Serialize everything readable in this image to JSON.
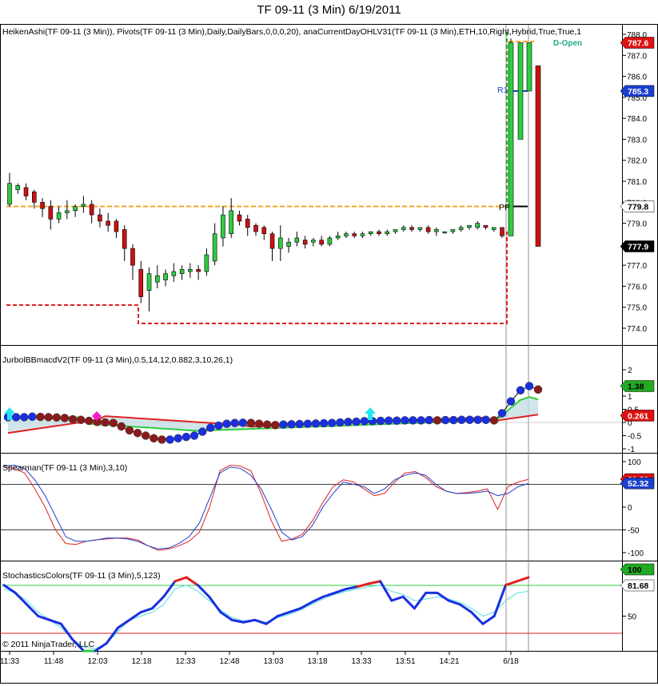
{
  "window_title": "TF 09-11 (3 Min)  6/19/2011",
  "copyright": "© 2011 NinjaTrader, LLC",
  "panels": {
    "price": {
      "label": "HeikenAshi(TF 09-11 (3 Min)), Pivots(TF 09-11 (3 Min),Daily,DailyBars,0,0,0,20), anaCurrentDayOHLV31(TF 09-11 (3 Min),ETH,10,Right,Hybrid,True,True,1",
      "ticks": [
        "788.0",
        "787.0",
        "786.0",
        "785.0",
        "784.0",
        "783.0",
        "782.0",
        "781.0",
        "780.0",
        "779.0",
        "778.0",
        "777.0",
        "776.0",
        "775.0",
        "774.0"
      ],
      "badges": [
        {
          "value": "787.6",
          "color": "#dd1111"
        },
        {
          "value": "785.3",
          "color": "#1a3fd0"
        },
        {
          "value": "779.8",
          "color": "#000000"
        },
        {
          "value": "777.9",
          "color": "#000000"
        }
      ],
      "annotations": [
        "R1",
        "PP",
        "D-Open"
      ]
    },
    "macd": {
      "label": "JurbolBBmacdV2(TF 09-11 (3 Min),0.5,14,12,0.882,3,10,26,1)",
      "ticks": [
        "2",
        "1",
        "0.5",
        "0",
        "-0.5",
        "-1"
      ],
      "badges": [
        {
          "value": "1.38",
          "color": "#22aa22"
        },
        {
          "value": "0.261",
          "color": "#dd1111"
        }
      ]
    },
    "spearman": {
      "label": "Spearman(TF 09-11 (3 Min),3,10)",
      "ticks": [
        "100",
        "50",
        "0",
        "-50",
        "-100"
      ],
      "badges": [
        {
          "value": "61.31",
          "color": "#dd1111"
        },
        {
          "value": "52.32",
          "color": "#1a3fd0"
        }
      ]
    },
    "stoch": {
      "label": "StochasticsColors(TF 09-11 (3 Min),5,123)",
      "ticks": [
        "50"
      ],
      "badges": [
        {
          "value": "100",
          "color": "#22aa22"
        },
        {
          "value": "81.68",
          "color": "#22aa22"
        }
      ]
    }
  },
  "chart_data": {
    "type": "candlestick",
    "title": "TF 09-11 (3 Min)  6/19/2011",
    "x_tick_labels": [
      "11:33",
      "11:48",
      "12:03",
      "12:18",
      "12:33",
      "12:48",
      "13:03",
      "13:18",
      "13:33",
      "13:51",
      "14:21",
      "6/18"
    ],
    "price_range": [
      773.6,
      788.2
    ],
    "pivot_levels": {
      "PP": 779.8,
      "R1": 785.3
    },
    "candles": [
      {
        "o": 779.9,
        "c": 780.9,
        "h": 781.4,
        "l": 779.8
      },
      {
        "o": 780.6,
        "c": 780.8,
        "h": 780.9,
        "l": 780.4
      },
      {
        "o": 780.7,
        "c": 780.3,
        "h": 780.9,
        "l": 780.1
      },
      {
        "o": 780.5,
        "c": 780.0,
        "h": 780.6,
        "l": 779.7
      },
      {
        "o": 780.0,
        "c": 779.7,
        "h": 780.2,
        "l": 779.3
      },
      {
        "o": 779.8,
        "c": 779.2,
        "h": 780.1,
        "l": 778.7
      },
      {
        "o": 779.2,
        "c": 779.5,
        "h": 779.8,
        "l": 779.0
      },
      {
        "o": 779.5,
        "c": 779.6,
        "h": 780.1,
        "l": 779.2
      },
      {
        "o": 779.6,
        "c": 779.8,
        "h": 779.9,
        "l": 779.3
      },
      {
        "o": 779.8,
        "c": 779.9,
        "h": 780.3,
        "l": 779.5
      },
      {
        "o": 779.9,
        "c": 779.4,
        "h": 780.1,
        "l": 779.0
      },
      {
        "o": 779.4,
        "c": 779.1,
        "h": 779.7,
        "l": 778.8
      },
      {
        "o": 779.1,
        "c": 778.9,
        "h": 779.5,
        "l": 778.6
      },
      {
        "o": 779.1,
        "c": 778.6,
        "h": 779.2,
        "l": 778.3
      },
      {
        "o": 778.7,
        "c": 777.8,
        "h": 778.9,
        "l": 777.2
      },
      {
        "o": 777.8,
        "c": 777.0,
        "h": 778.0,
        "l": 776.3
      },
      {
        "o": 776.8,
        "c": 775.5,
        "h": 777.2,
        "l": 775.2
      },
      {
        "o": 775.8,
        "c": 776.6,
        "h": 776.9,
        "l": 774.8
      },
      {
        "o": 776.2,
        "c": 776.5,
        "h": 777.0,
        "l": 775.9
      },
      {
        "o": 776.3,
        "c": 776.6,
        "h": 776.8,
        "l": 776.0
      },
      {
        "o": 776.5,
        "c": 776.7,
        "h": 777.1,
        "l": 776.2
      },
      {
        "o": 776.6,
        "c": 776.8,
        "h": 777.0,
        "l": 776.3
      },
      {
        "o": 776.7,
        "c": 776.8,
        "h": 777.1,
        "l": 776.4
      },
      {
        "o": 776.8,
        "c": 776.7,
        "h": 777.0,
        "l": 776.3
      },
      {
        "o": 776.7,
        "c": 777.5,
        "h": 777.8,
        "l": 776.5
      },
      {
        "o": 777.2,
        "c": 778.5,
        "h": 779.0,
        "l": 777.0
      },
      {
        "o": 778.3,
        "c": 779.4,
        "h": 779.8,
        "l": 777.9
      },
      {
        "o": 778.5,
        "c": 779.6,
        "h": 780.2,
        "l": 778.3
      },
      {
        "o": 779.4,
        "c": 779.1,
        "h": 779.6,
        "l": 778.9
      },
      {
        "o": 779.2,
        "c": 778.8,
        "h": 779.4,
        "l": 778.4
      },
      {
        "o": 778.9,
        "c": 778.6,
        "h": 779.0,
        "l": 778.4
      },
      {
        "o": 778.8,
        "c": 778.5,
        "h": 778.9,
        "l": 778.2
      },
      {
        "o": 778.5,
        "c": 777.8,
        "h": 778.6,
        "l": 777.2
      },
      {
        "o": 777.8,
        "c": 778.3,
        "h": 778.9,
        "l": 777.2
      },
      {
        "o": 777.9,
        "c": 778.1,
        "h": 778.3,
        "l": 777.6
      },
      {
        "o": 778.1,
        "c": 778.3,
        "h": 778.6,
        "l": 777.9
      },
      {
        "o": 778.2,
        "c": 778.0,
        "h": 778.4,
        "l": 777.8
      },
      {
        "o": 778.1,
        "c": 778.2,
        "h": 778.3,
        "l": 777.9
      },
      {
        "o": 778.2,
        "c": 778.0,
        "h": 778.4,
        "l": 777.9
      },
      {
        "o": 778.0,
        "c": 778.3,
        "h": 778.4,
        "l": 777.9
      },
      {
        "o": 778.3,
        "c": 778.4,
        "h": 778.6,
        "l": 778.2
      },
      {
        "o": 778.4,
        "c": 778.5,
        "h": 778.6,
        "l": 778.3
      },
      {
        "o": 778.5,
        "c": 778.4,
        "h": 778.6,
        "l": 778.3
      },
      {
        "o": 778.4,
        "c": 778.5,
        "h": 778.6,
        "l": 778.3
      },
      {
        "o": 778.5,
        "c": 778.6,
        "h": 778.6,
        "l": 778.4
      },
      {
        "o": 778.6,
        "c": 778.5,
        "h": 778.7,
        "l": 778.4
      },
      {
        "o": 778.5,
        "c": 778.6,
        "h": 778.7,
        "l": 778.4
      },
      {
        "o": 778.6,
        "c": 778.7,
        "h": 778.7,
        "l": 778.5
      },
      {
        "o": 778.7,
        "c": 778.8,
        "h": 778.9,
        "l": 778.6
      },
      {
        "o": 778.8,
        "c": 778.7,
        "h": 778.9,
        "l": 778.6
      },
      {
        "o": 778.7,
        "c": 778.8,
        "h": 778.8,
        "l": 778.6
      },
      {
        "o": 778.8,
        "c": 778.6,
        "h": 778.9,
        "l": 778.5
      },
      {
        "o": 778.6,
        "c": 778.7,
        "h": 778.8,
        "l": 778.4
      },
      {
        "o": 778.6,
        "c": 778.6,
        "h": 778.6,
        "l": 778.5
      },
      {
        "o": 778.6,
        "c": 778.7,
        "h": 778.7,
        "l": 778.5
      },
      {
        "o": 778.7,
        "c": 778.8,
        "h": 778.9,
        "l": 778.6
      },
      {
        "o": 778.8,
        "c": 778.9,
        "h": 778.9,
        "l": 778.7
      },
      {
        "o": 778.8,
        "c": 779.0,
        "h": 779.1,
        "l": 778.7
      },
      {
        "o": 778.9,
        "c": 778.8,
        "h": 778.9,
        "l": 778.7
      },
      {
        "o": 778.7,
        "c": 778.8,
        "h": 778.8,
        "l": 778.6
      },
      {
        "o": 778.8,
        "c": 778.4,
        "h": 778.8,
        "l": 778.3
      },
      {
        "o": 778.4,
        "c": 787.6,
        "h": 787.8,
        "l": 778.4
      },
      {
        "o": 783.0,
        "c": 787.6,
        "h": 787.6,
        "l": 783.0
      },
      {
        "o": 785.3,
        "c": 787.6,
        "h": 787.6,
        "l": 785.3
      },
      {
        "o": 786.5,
        "c": 777.9,
        "h": 786.5,
        "l": 777.9
      }
    ],
    "macd_line": [
      0.2,
      0.2,
      0.2,
      0.22,
      0.21,
      0.2,
      0.19,
      0.17,
      0.12,
      0.1,
      0.06,
      0.02,
      0.0,
      -0.02,
      -0.15,
      -0.3,
      -0.4,
      -0.5,
      -0.6,
      -0.65,
      -0.65,
      -0.6,
      -0.55,
      -0.5,
      -0.35,
      -0.2,
      -0.12,
      -0.05,
      -0.02,
      -0.01,
      -0.02,
      -0.05,
      -0.08,
      -0.1,
      -0.08,
      -0.07,
      -0.06,
      -0.05,
      -0.04,
      -0.03,
      -0.02,
      0.0,
      0.02,
      0.03,
      0.05,
      0.05,
      0.06,
      0.07,
      0.07,
      0.08,
      0.08,
      0.08,
      0.09,
      0.08,
      0.09,
      0.09,
      0.1,
      0.1,
      0.1,
      0.1,
      0.08,
      0.35,
      0.8,
      1.22,
      1.38,
      1.25
    ],
    "macd_colors": "mixed blue (rising) / maroon (falling)",
    "macd_bands": {
      "green_last": 1.38,
      "red_last": 0.261
    },
    "spearman": {
      "red": [
        88,
        85,
        75,
        40,
        0,
        -50,
        -80,
        -82,
        -75,
        -72,
        -70,
        -68,
        -68,
        -72,
        -85,
        -95,
        -92,
        -85,
        -75,
        -55,
        0,
        80,
        92,
        90,
        80,
        30,
        -30,
        -75,
        -70,
        -60,
        -30,
        10,
        45,
        60,
        55,
        40,
        25,
        30,
        55,
        75,
        78,
        65,
        45,
        35,
        30,
        32,
        35,
        40,
        -5,
        45,
        55,
        61
      ],
      "blue": [
        90,
        92,
        85,
        60,
        25,
        -20,
        -65,
        -75,
        -75,
        -72,
        -68,
        -68,
        -70,
        -75,
        -85,
        -92,
        -90,
        -80,
        -65,
        -35,
        20,
        75,
        88,
        85,
        70,
        40,
        -5,
        -55,
        -72,
        -65,
        -40,
        0,
        30,
        55,
        50,
        45,
        30,
        40,
        60,
        70,
        75,
        70,
        50,
        35,
        30,
        30,
        32,
        35,
        25,
        30,
        45,
        52
      ]
    },
    "stochastics": {
      "k": [
        90,
        80,
        65,
        50,
        45,
        40,
        20,
        5,
        5,
        15,
        35,
        45,
        55,
        60,
        75,
        95,
        100,
        90,
        75,
        55,
        45,
        42,
        45,
        40,
        50,
        55,
        60,
        68,
        75,
        80,
        85,
        88,
        92,
        95,
        70,
        75,
        60,
        80,
        80,
        70,
        65,
        55,
        40,
        50,
        90,
        95,
        100
      ],
      "d": [
        85,
        80,
        70,
        55,
        45,
        35,
        20,
        10,
        8,
        15,
        30,
        45,
        50,
        55,
        65,
        85,
        90,
        82,
        70,
        58,
        48,
        44,
        45,
        42,
        48,
        52,
        58,
        65,
        72,
        78,
        82,
        85,
        88,
        90,
        82,
        78,
        70,
        72,
        75,
        72,
        68,
        60,
        50,
        55,
        70,
        80,
        82
      ]
    }
  }
}
